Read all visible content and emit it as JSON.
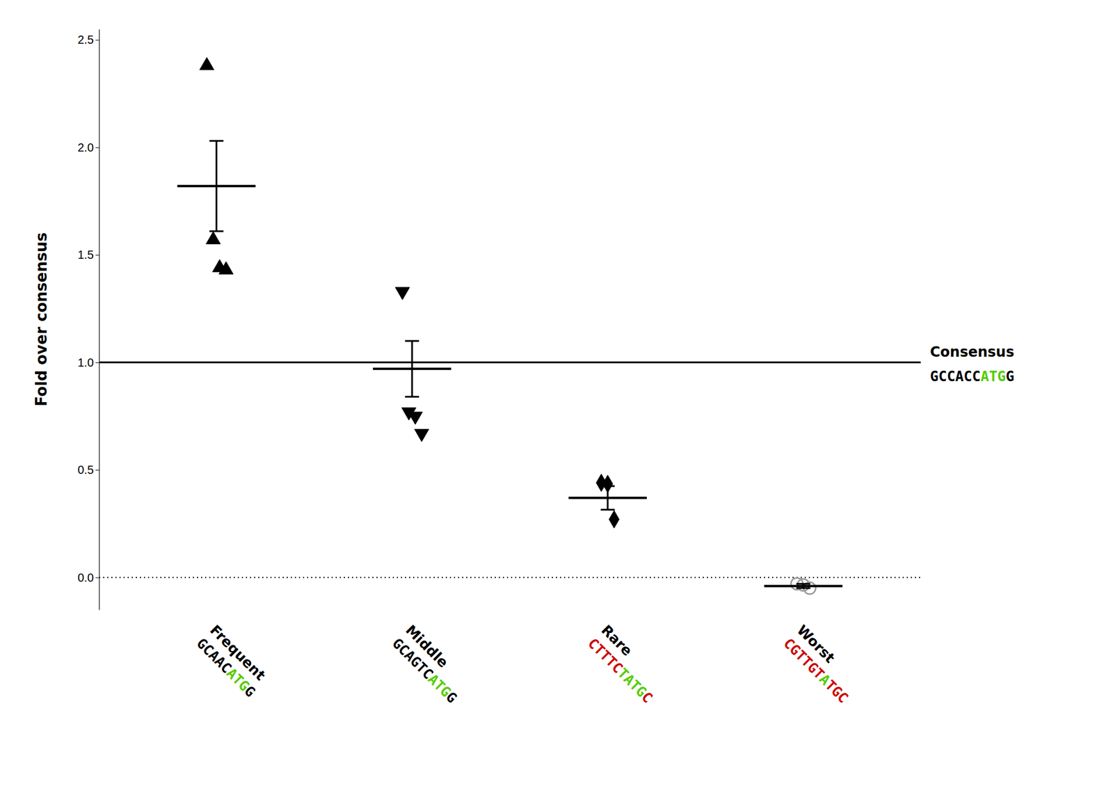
{
  "chart_data": {
    "type": "strip",
    "categories": [
      "Frequent",
      "Middle",
      "Rare",
      "Worst"
    ],
    "points": [
      [
        2.38,
        1.57,
        1.44,
        1.43
      ],
      [
        1.33,
        0.77,
        0.75,
        0.67
      ],
      [
        0.44,
        0.435,
        0.27
      ],
      [
        -0.03,
        -0.035,
        -0.05
      ]
    ],
    "markers": [
      "triangle-up",
      "triangle-down",
      "diamond",
      "circle-open"
    ],
    "colors": [
      "#000000",
      "#000000",
      "#000000",
      "#999999"
    ],
    "means": [
      1.82,
      0.97,
      0.37,
      -0.04
    ],
    "errors_upper": [
      0.21,
      0.13,
      0.055,
      0.01
    ],
    "errors_lower": [
      0.21,
      0.13,
      0.055,
      0.01
    ],
    "ylabel": "Fold over consensus",
    "ylim": [
      -0.15,
      2.55
    ],
    "yticks": [
      {
        "value": 0.0,
        "label": "0.0"
      },
      0.5,
      {
        "value": 1.0,
        "label": "1.0"
      },
      1.5,
      {
        "value": 2.0,
        "label": "2.0"
      },
      2.5
    ],
    "grid": false,
    "reference_lines": [
      {
        "value": 1.0,
        "line_style": "solid",
        "label": "Consensus",
        "sequence": [
          {
            "text": "GCCACC",
            "color": "#000000"
          },
          {
            "text": "ATG",
            "color": "#55cc00"
          },
          {
            "text": "G",
            "color": "#000000"
          }
        ]
      },
      {
        "value": 0.0,
        "line_style": "dotted"
      }
    ],
    "category_sequences": [
      [
        {
          "text": "GC",
          "color": "#000000"
        },
        {
          "text": "AA",
          "color": "#000000"
        },
        {
          "text": "C",
          "color": "#000000"
        },
        {
          "text": "ATG",
          "color": "#55cc00"
        },
        {
          "text": "G",
          "color": "#000000"
        }
      ],
      [
        {
          "text": "GC",
          "color": "#000000"
        },
        {
          "text": "AGT",
          "color": "#000000"
        },
        {
          "text": "C",
          "color": "#000000"
        },
        {
          "text": "ATG",
          "color": "#55cc00"
        },
        {
          "text": "G",
          "color": "#000000"
        }
      ],
      [
        {
          "text": "C",
          "color": "#cc0000"
        },
        {
          "text": "TTT",
          "color": "#cc0000"
        },
        {
          "text": "C",
          "color": "#cc0000"
        },
        {
          "text": "T",
          "color": "#55cc00"
        },
        {
          "text": "ATG",
          "color": "#55cc00"
        },
        {
          "text": "C",
          "color": "#cc0000"
        }
      ],
      [
        {
          "text": "C",
          "color": "#cc0000"
        },
        {
          "text": "GTTG",
          "color": "#cc0000"
        },
        {
          "text": "T",
          "color": "#cc0000"
        },
        {
          "text": "A",
          "color": "#55cc00"
        },
        {
          "text": "TGC",
          "color": "#cc0000"
        }
      ]
    ]
  }
}
